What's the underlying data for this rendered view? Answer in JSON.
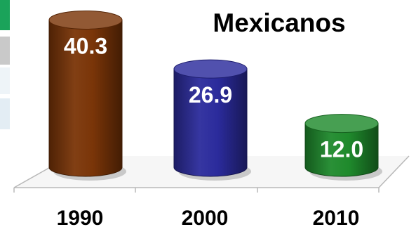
{
  "chart_data": {
    "type": "bar",
    "title": "Mexicanos",
    "categories": [
      "1990",
      "2000",
      "2010"
    ],
    "values": [
      40.3,
      26.9,
      12.0
    ],
    "value_labels": [
      "40.3",
      "26.9",
      "12.0"
    ],
    "colors": [
      "#7a3508",
      "#2b2b9c",
      "#1f8a2c"
    ],
    "ylim": [
      0,
      45
    ],
    "legend": "none",
    "grid": false
  },
  "side_strip_colors": [
    "#1aa35a",
    "#c9c9c9",
    "#eef4f8",
    "#e3edf4"
  ]
}
